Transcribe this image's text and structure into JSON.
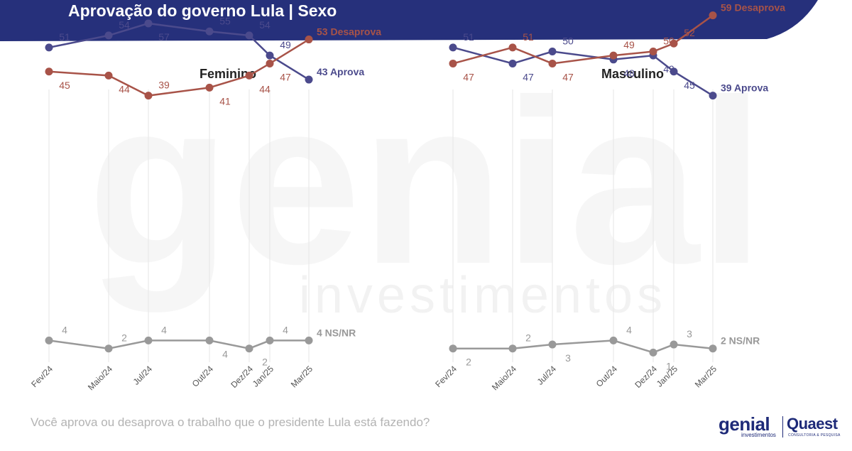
{
  "header": {
    "title": "Aprovação do governo Lula | Sexo",
    "bar_color": "#26307b"
  },
  "footer": {
    "question": "Você aprova ou desaprova o trabalho que o presidente Lula está fazendo?",
    "logo_genial": "genial",
    "logo_genial_sub": "investimentos",
    "logo_quaest": "Quaest",
    "logo_quaest_sub": "CONSULTORIA & PESQUISA"
  },
  "watermark": {
    "word1": "genial",
    "word2": "investimentos"
  },
  "colors": {
    "aprova": "#4b4a8c",
    "desaprova": "#a85348",
    "nsnr": "#999999",
    "grid": "#e6e6e6"
  },
  "chart_data": [
    {
      "type": "line",
      "title": "Feminino",
      "categories": [
        "Fev/24",
        "Maio/24",
        "Jul/24",
        "Out/24",
        "Dez/24",
        "Jan/25",
        "Mar/25"
      ],
      "series": [
        {
          "name": "Aprova",
          "end_label": "43 Aprova",
          "values": [
            51,
            54,
            57,
            55,
            54,
            49,
            43
          ]
        },
        {
          "name": "Desaprova",
          "end_label": "53 Desaprova",
          "values": [
            45,
            44,
            39,
            41,
            44,
            47,
            53
          ]
        },
        {
          "name": "NS/NR",
          "end_label": "4 NS/NR",
          "values": [
            4,
            2,
            4,
            4,
            2,
            4,
            4
          ]
        }
      ]
    },
    {
      "type": "line",
      "title": "Masculino",
      "categories": [
        "Fev/24",
        "Maio/24",
        "Jul/24",
        "Out/24",
        "Dez/24",
        "Jan/25",
        "Mar/25"
      ],
      "series": [
        {
          "name": "Aprova",
          "end_label": "39 Aprova",
          "values": [
            51,
            47,
            50,
            48,
            49,
            45,
            39
          ]
        },
        {
          "name": "Desaprova",
          "end_label": "59 Desaprova",
          "values": [
            47,
            51,
            47,
            49,
            50,
            52,
            59
          ]
        },
        {
          "name": "NS/NR",
          "end_label": "2 NS/NR",
          "values": [
            2,
            2,
            3,
            4,
            1,
            3,
            2
          ]
        }
      ]
    }
  ]
}
